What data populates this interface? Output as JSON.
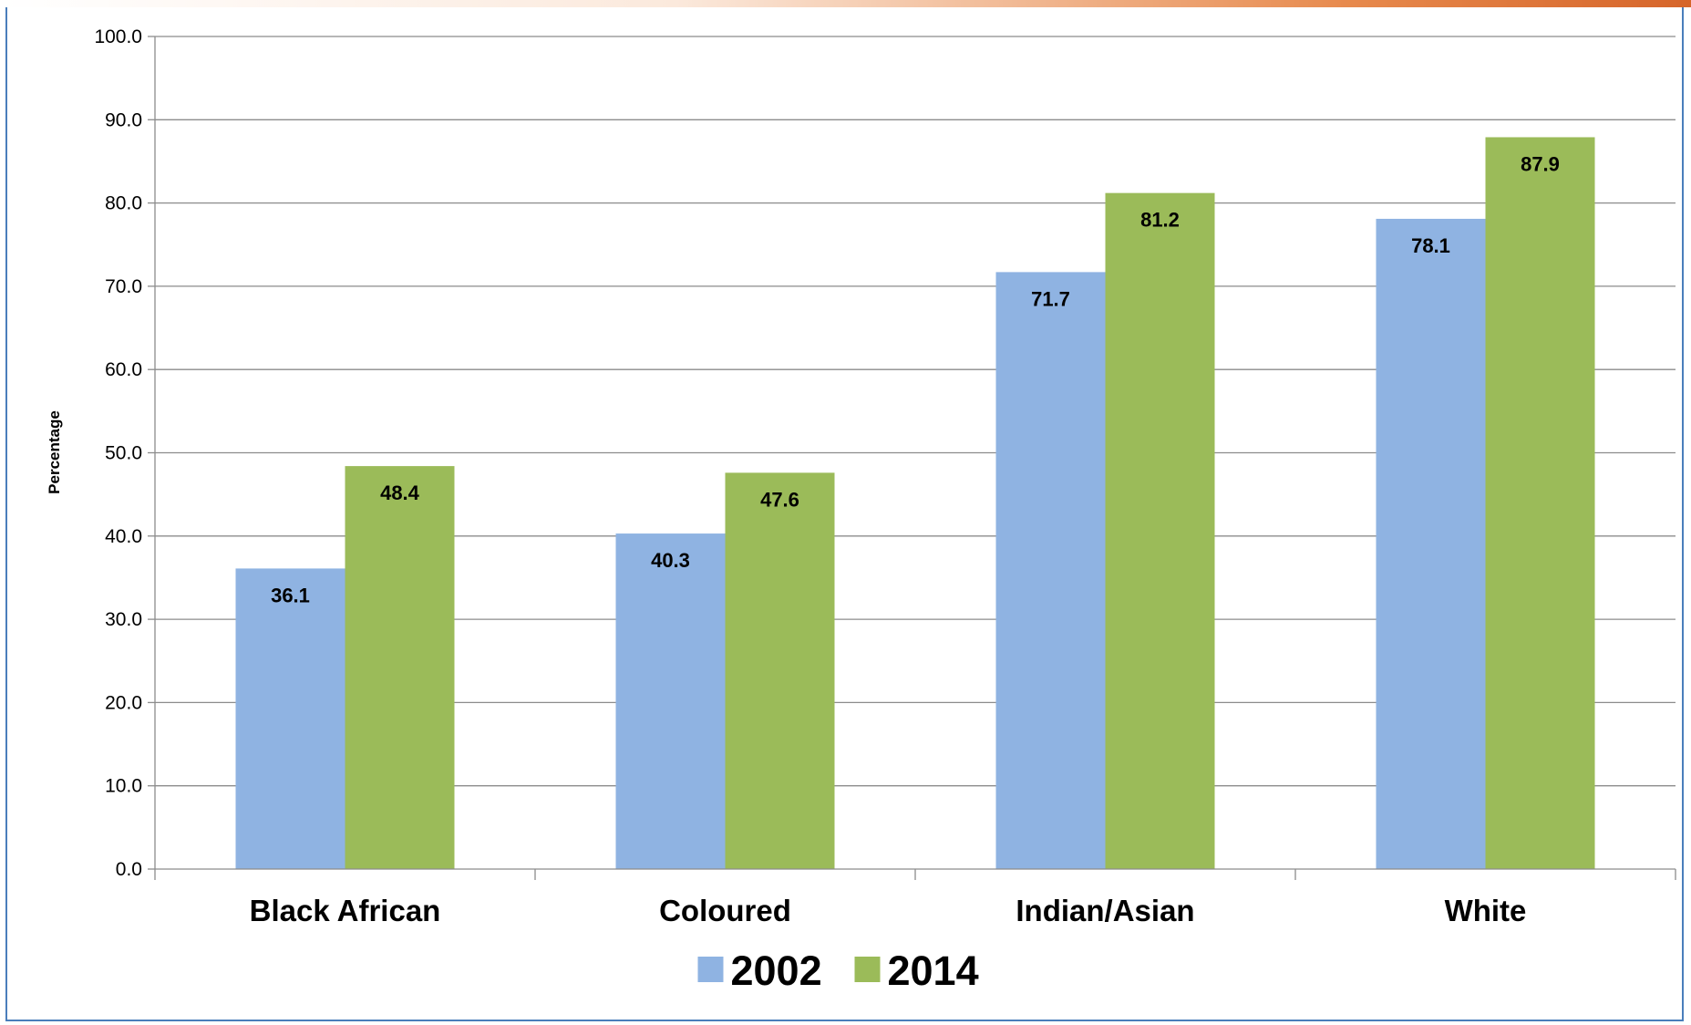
{
  "chart_data": {
    "type": "bar",
    "title": "",
    "xlabel": "",
    "ylabel": "Percentage",
    "ylim": [
      0,
      100
    ],
    "ytick_step": 10,
    "ytick_decimals": 1,
    "grid": true,
    "legend_position": "bottom-center",
    "categories": [
      "Black African",
      "Coloured",
      "Indian/Asian",
      "White"
    ],
    "series": [
      {
        "name": "2002",
        "color": "#8fb3e2",
        "values": [
          36.1,
          40.3,
          71.7,
          78.1
        ]
      },
      {
        "name": "2014",
        "color": "#9bbb59",
        "values": [
          48.4,
          47.6,
          81.2,
          87.9
        ]
      }
    ]
  }
}
